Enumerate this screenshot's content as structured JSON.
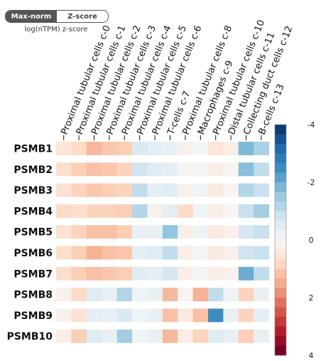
{
  "controls": {
    "toggle_left": "Max-norm",
    "toggle_right": "Z-score",
    "subtitle": "log(nTPM) z-score"
  },
  "colors": {
    "scale": [
      "#67001f",
      "#b2182b",
      "#d6604d",
      "#f4a582",
      "#fddbc7",
      "#f7f7f7",
      "#d1e5f0",
      "#92c5de",
      "#4393c3",
      "#2166ac",
      "#053061"
    ]
  },
  "chart_data": {
    "type": "heatmap",
    "title": "",
    "xlabel": "",
    "ylabel": "",
    "columns": [
      "Proximal tubular cells c-0",
      "Proximal tubular cells c-1",
      "Proximal tubular cells c-2",
      "Proximal tubular cells c-3",
      "Proximal tubular cells c-4",
      "Proximal tubular cells c-5",
      "Proximal tubular cells c-6",
      "T-cells c-7",
      "Proximal tubular cells c-8",
      "Macrophages c-9",
      "Proximal tubular cells c-10",
      "Distal tubular cells c-11",
      "Collecting duct cells c-12",
      "B-cells c-13"
    ],
    "rows": [
      "PSMB1",
      "PSMB2",
      "PSMB3",
      "PSMB4",
      "PSMB5",
      "PSMB6",
      "PSMB7",
      "PSMB8",
      "PSMB9",
      "PSMB10"
    ],
    "values": [
      [
        0.5,
        0.8,
        1.3,
        1.1,
        1.0,
        -0.6,
        -0.4,
        -0.3,
        0.2,
        -0.1,
        0.5,
        0.3,
        -1.8,
        -1.3
      ],
      [
        0.7,
        1.0,
        1.2,
        1.1,
        0.9,
        -0.8,
        -0.5,
        -0.4,
        0.1,
        -0.1,
        0.3,
        0.1,
        -1.7,
        -1.0
      ],
      [
        0.6,
        0.9,
        1.1,
        1.0,
        0.9,
        -1.0,
        -0.4,
        -0.5,
        0.2,
        -0.2,
        0.4,
        0.1,
        -1.2,
        -0.9
      ],
      [
        0.8,
        0.7,
        0.9,
        0.9,
        1.0,
        -1.2,
        0.2,
        -0.4,
        0.8,
        -0.2,
        0.3,
        0.1,
        -0.9,
        -1.4
      ],
      [
        0.6,
        0.9,
        1.2,
        1.2,
        1.0,
        -0.3,
        -0.3,
        -1.6,
        0.3,
        -0.2,
        0.4,
        0.2,
        -0.7,
        -0.9
      ],
      [
        0.7,
        1.0,
        1.4,
        1.2,
        1.1,
        -0.4,
        -0.5,
        -1.0,
        0.3,
        -0.1,
        0.4,
        0.2,
        -0.8,
        -0.9
      ],
      [
        0.7,
        1.0,
        1.2,
        1.1,
        1.0,
        -0.5,
        -0.4,
        -0.7,
        0.3,
        -0.1,
        0.3,
        0.2,
        -2.0,
        -1.0
      ],
      [
        0.2,
        0.8,
        -0.5,
        -0.3,
        -1.2,
        -0.2,
        -0.3,
        1.3,
        0.1,
        1.4,
        -1.0,
        -0.2,
        0.9,
        -0.3
      ],
      [
        0.2,
        0.6,
        -0.4,
        -0.3,
        -0.6,
        -0.2,
        -0.3,
        1.2,
        0.4,
        1.2,
        -2.5,
        -0.3,
        0.9,
        -0.4
      ],
      [
        0.3,
        1.0,
        -0.5,
        -0.3,
        -1.4,
        -0.2,
        -0.3,
        1.3,
        0.3,
        0.9,
        -0.5,
        -0.3,
        1.0,
        -0.3
      ]
    ],
    "colorbar": {
      "min": -4,
      "max": 4,
      "ticks": [
        -4,
        -2,
        0,
        2,
        4
      ],
      "reversed": true
    }
  }
}
